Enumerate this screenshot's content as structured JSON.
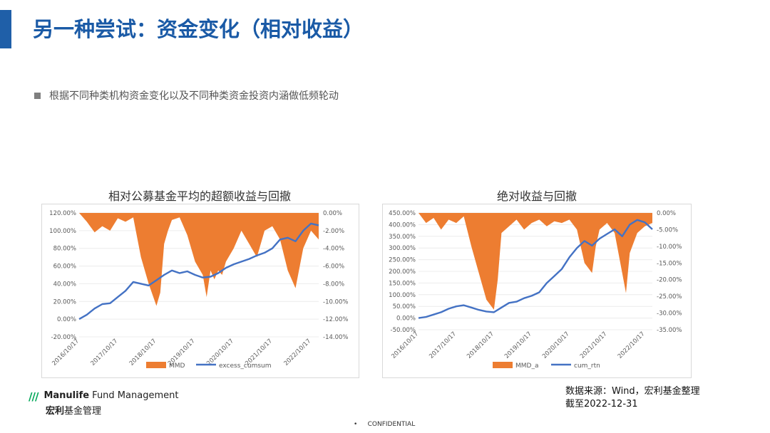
{
  "slide": {
    "title": "另一种尝试：资金变化（相对收益）",
    "bullet": "根据不同种类机构资金变化以及不同种类资金投资内涵做低频轮动",
    "source_line1": "数据来源：Wind，宏利基金整理",
    "source_line2": "截至2022-12-31",
    "footer_dot": "•",
    "footer": "CONFIDENTIAL",
    "brand_color": "#1a5aa6"
  },
  "logo": {
    "mark": "///",
    "en_bold": "Manulife",
    "en_rest": " Fund Management",
    "cn_bold": "宏利",
    "cn_rest": "基金管理",
    "color": "#00a758"
  },
  "chart_data": [
    {
      "type": "line",
      "title": "相对公募基金平均的超额收益与回撤",
      "x_ticks": [
        "2016/10/17",
        "2017/10/17",
        "2018/10/17",
        "2019/10/17",
        "2020/10/17",
        "2021/10/17",
        "2022/10/17"
      ],
      "left_axis": {
        "ticks": [
          "120.00%",
          "100.00%",
          "80.00%",
          "60.00%",
          "40.00%",
          "20.00%",
          "0.00%",
          "-20.00%"
        ],
        "range": [
          -20,
          120
        ]
      },
      "right_axis": {
        "ticks": [
          "0.00%",
          "-2.00%",
          "-4.00%",
          "-6.00%",
          "-8.00%",
          "-10.00%",
          "-12.00%",
          "-14.00%"
        ],
        "range": [
          -14,
          0
        ]
      },
      "series": [
        {
          "name": "MMD",
          "kind": "area",
          "axis": "right",
          "color": "#ed7d31",
          "x": [
            2016.8,
            2017.0,
            2017.2,
            2017.4,
            2017.6,
            2017.8,
            2018.0,
            2018.2,
            2018.4,
            2018.6,
            2018.8,
            2018.9,
            2019.0,
            2019.1,
            2019.2,
            2019.4,
            2019.6,
            2019.8,
            2020.0,
            2020.1,
            2020.2,
            2020.3,
            2020.4,
            2020.5,
            2020.6,
            2020.8,
            2021.0,
            2021.2,
            2021.4,
            2021.6,
            2021.8,
            2022.0,
            2022.2,
            2022.4,
            2022.6,
            2022.8,
            2023.0
          ],
          "values": [
            0,
            -1.0,
            -2.2,
            -1.5,
            -2.0,
            -0.6,
            -1.0,
            -0.5,
            -5.0,
            -8.0,
            -10.5,
            -9.0,
            -3.5,
            -2.0,
            -0.8,
            -0.5,
            -2.5,
            -5.5,
            -7.0,
            -9.5,
            -6.5,
            -7.5,
            -6.5,
            -7.0,
            -5.5,
            -4.0,
            -2.0,
            -3.5,
            -5.0,
            -2.0,
            -1.5,
            -3.0,
            -6.5,
            -8.5,
            -4.0,
            -2.0,
            -3.0
          ]
        },
        {
          "name": "excess_cumsum",
          "kind": "line",
          "axis": "left",
          "color": "#4472c4",
          "x": [
            2016.8,
            2017.0,
            2017.2,
            2017.4,
            2017.6,
            2017.8,
            2018.0,
            2018.2,
            2018.4,
            2018.6,
            2018.8,
            2019.0,
            2019.2,
            2019.4,
            2019.6,
            2019.8,
            2020.0,
            2020.2,
            2020.4,
            2020.6,
            2020.8,
            2021.0,
            2021.2,
            2021.4,
            2021.6,
            2021.8,
            2022.0,
            2022.2,
            2022.4,
            2022.6,
            2022.8,
            2023.0
          ],
          "values": [
            0,
            5,
            12,
            17,
            18,
            25,
            32,
            42,
            40,
            38,
            44,
            50,
            55,
            52,
            54,
            50,
            47,
            48,
            52,
            58,
            62,
            65,
            68,
            72,
            75,
            80,
            90,
            92,
            88,
            100,
            108,
            106
          ]
        }
      ],
      "legend": "bottom"
    },
    {
      "type": "line",
      "title": "绝对收益与回撤",
      "x_ticks": [
        "2016/10/17",
        "2017/10/17",
        "2018/10/17",
        "2019/10/17",
        "2020/10/17",
        "2021/10/17",
        "2022/10/17"
      ],
      "left_axis": {
        "ticks": [
          "450.00%",
          "400.00%",
          "350.00%",
          "300.00%",
          "250.00%",
          "200.00%",
          "150.00%",
          "100.00%",
          "50.00%",
          "0.00%",
          "-50.00%"
        ],
        "range": [
          -50,
          450
        ]
      },
      "right_axis": {
        "ticks": [
          "0.00%",
          "-5.00%",
          "-10.00%",
          "-15.00%",
          "-20.00%",
          "-25.00%",
          "-30.00%",
          "-35.00%"
        ],
        "range": [
          -35,
          0
        ]
      },
      "series": [
        {
          "name": "MMD_a",
          "kind": "area",
          "axis": "right",
          "color": "#ed7d31",
          "x": [
            2016.8,
            2017.0,
            2017.2,
            2017.4,
            2017.6,
            2017.8,
            2018.0,
            2018.2,
            2018.4,
            2018.6,
            2018.8,
            2018.9,
            2019.0,
            2019.2,
            2019.4,
            2019.6,
            2019.8,
            2020.0,
            2020.2,
            2020.4,
            2020.6,
            2020.8,
            2021.0,
            2021.2,
            2021.4,
            2021.5,
            2021.6,
            2021.8,
            2022.0,
            2022.2,
            2022.3,
            2022.4,
            2022.6,
            2022.8,
            2023.0
          ],
          "values": [
            0,
            -3.0,
            -1.5,
            -5.0,
            -2.0,
            -3.0,
            -1.0,
            -10.0,
            -18.0,
            -26.0,
            -29.0,
            -20.0,
            -6.0,
            -4.0,
            -2.0,
            -5.0,
            -3.0,
            -2.0,
            -4.0,
            -2.5,
            -3.0,
            -2.0,
            -5.0,
            -15.0,
            -18.0,
            -10.0,
            -5.0,
            -3.0,
            -6.0,
            -18.0,
            -24.0,
            -12.0,
            -6.0,
            -4.0,
            -3.0
          ]
        },
        {
          "name": "cum_rtn",
          "kind": "line",
          "axis": "left",
          "color": "#4472c4",
          "x": [
            2016.8,
            2017.0,
            2017.2,
            2017.4,
            2017.6,
            2017.8,
            2018.0,
            2018.2,
            2018.4,
            2018.6,
            2018.8,
            2019.0,
            2019.2,
            2019.4,
            2019.6,
            2019.8,
            2020.0,
            2020.2,
            2020.4,
            2020.6,
            2020.8,
            2021.0,
            2021.2,
            2021.4,
            2021.6,
            2021.8,
            2022.0,
            2022.2,
            2022.4,
            2022.6,
            2022.8,
            2023.0
          ],
          "values": [
            0,
            5,
            15,
            25,
            40,
            50,
            55,
            45,
            35,
            28,
            25,
            45,
            65,
            70,
            85,
            95,
            110,
            150,
            180,
            210,
            260,
            300,
            330,
            310,
            340,
            360,
            380,
            350,
            400,
            420,
            410,
            380
          ]
        }
      ],
      "legend": "bottom"
    }
  ]
}
